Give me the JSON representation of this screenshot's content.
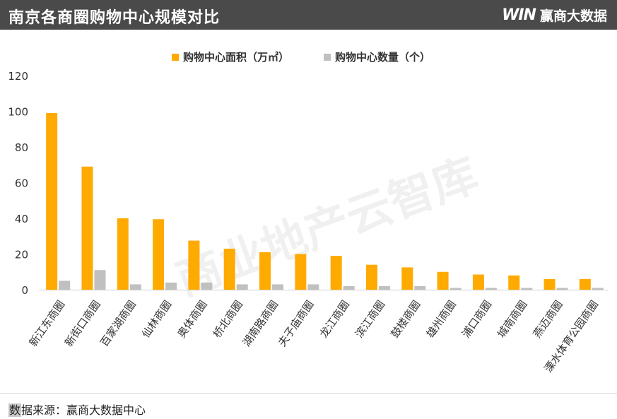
{
  "header": {
    "title": "南京各商圈购物中心规模对比",
    "brand_mark": "WIN",
    "brand_name": "赢商大数据"
  },
  "watermark": "商业地产云智库",
  "footer": {
    "source_prefix": "数",
    "source_rest": "据来源：赢商大数据中心"
  },
  "colors": {
    "area": "#FFAA00",
    "count": "#C0C0C0"
  },
  "chart_data": {
    "type": "bar",
    "title": "",
    "xlabel": "",
    "ylabel": "",
    "ylim": [
      0,
      120
    ],
    "yticks": [
      0,
      20,
      40,
      60,
      80,
      100,
      120
    ],
    "legend": "top-center",
    "grid": false,
    "categories": [
      "新江东商圈",
      "新街口商圈",
      "百家湖商圈",
      "仙林商圈",
      "奥体商圈",
      "桥北商圈",
      "湖南路商圈",
      "夫子庙商圈",
      "龙江商圈",
      "滨江商圈",
      "鼓楼商圈",
      "雄州商圈",
      "浦口商圈",
      "城南商圈",
      "燕迈商圈",
      "溧水体育公园商圈"
    ],
    "series": [
      {
        "name": "购物中心面积（万㎡）",
        "values": [
          99,
          69,
          40,
          39.5,
          27.5,
          23,
          21,
          20,
          19,
          14,
          12.5,
          10,
          8.5,
          8,
          6,
          6
        ]
      },
      {
        "name": "购物中心数量（个）",
        "values": [
          5,
          11,
          3,
          4,
          4,
          3,
          3,
          3,
          2,
          2,
          2,
          1,
          1,
          1,
          1,
          1
        ]
      }
    ]
  }
}
